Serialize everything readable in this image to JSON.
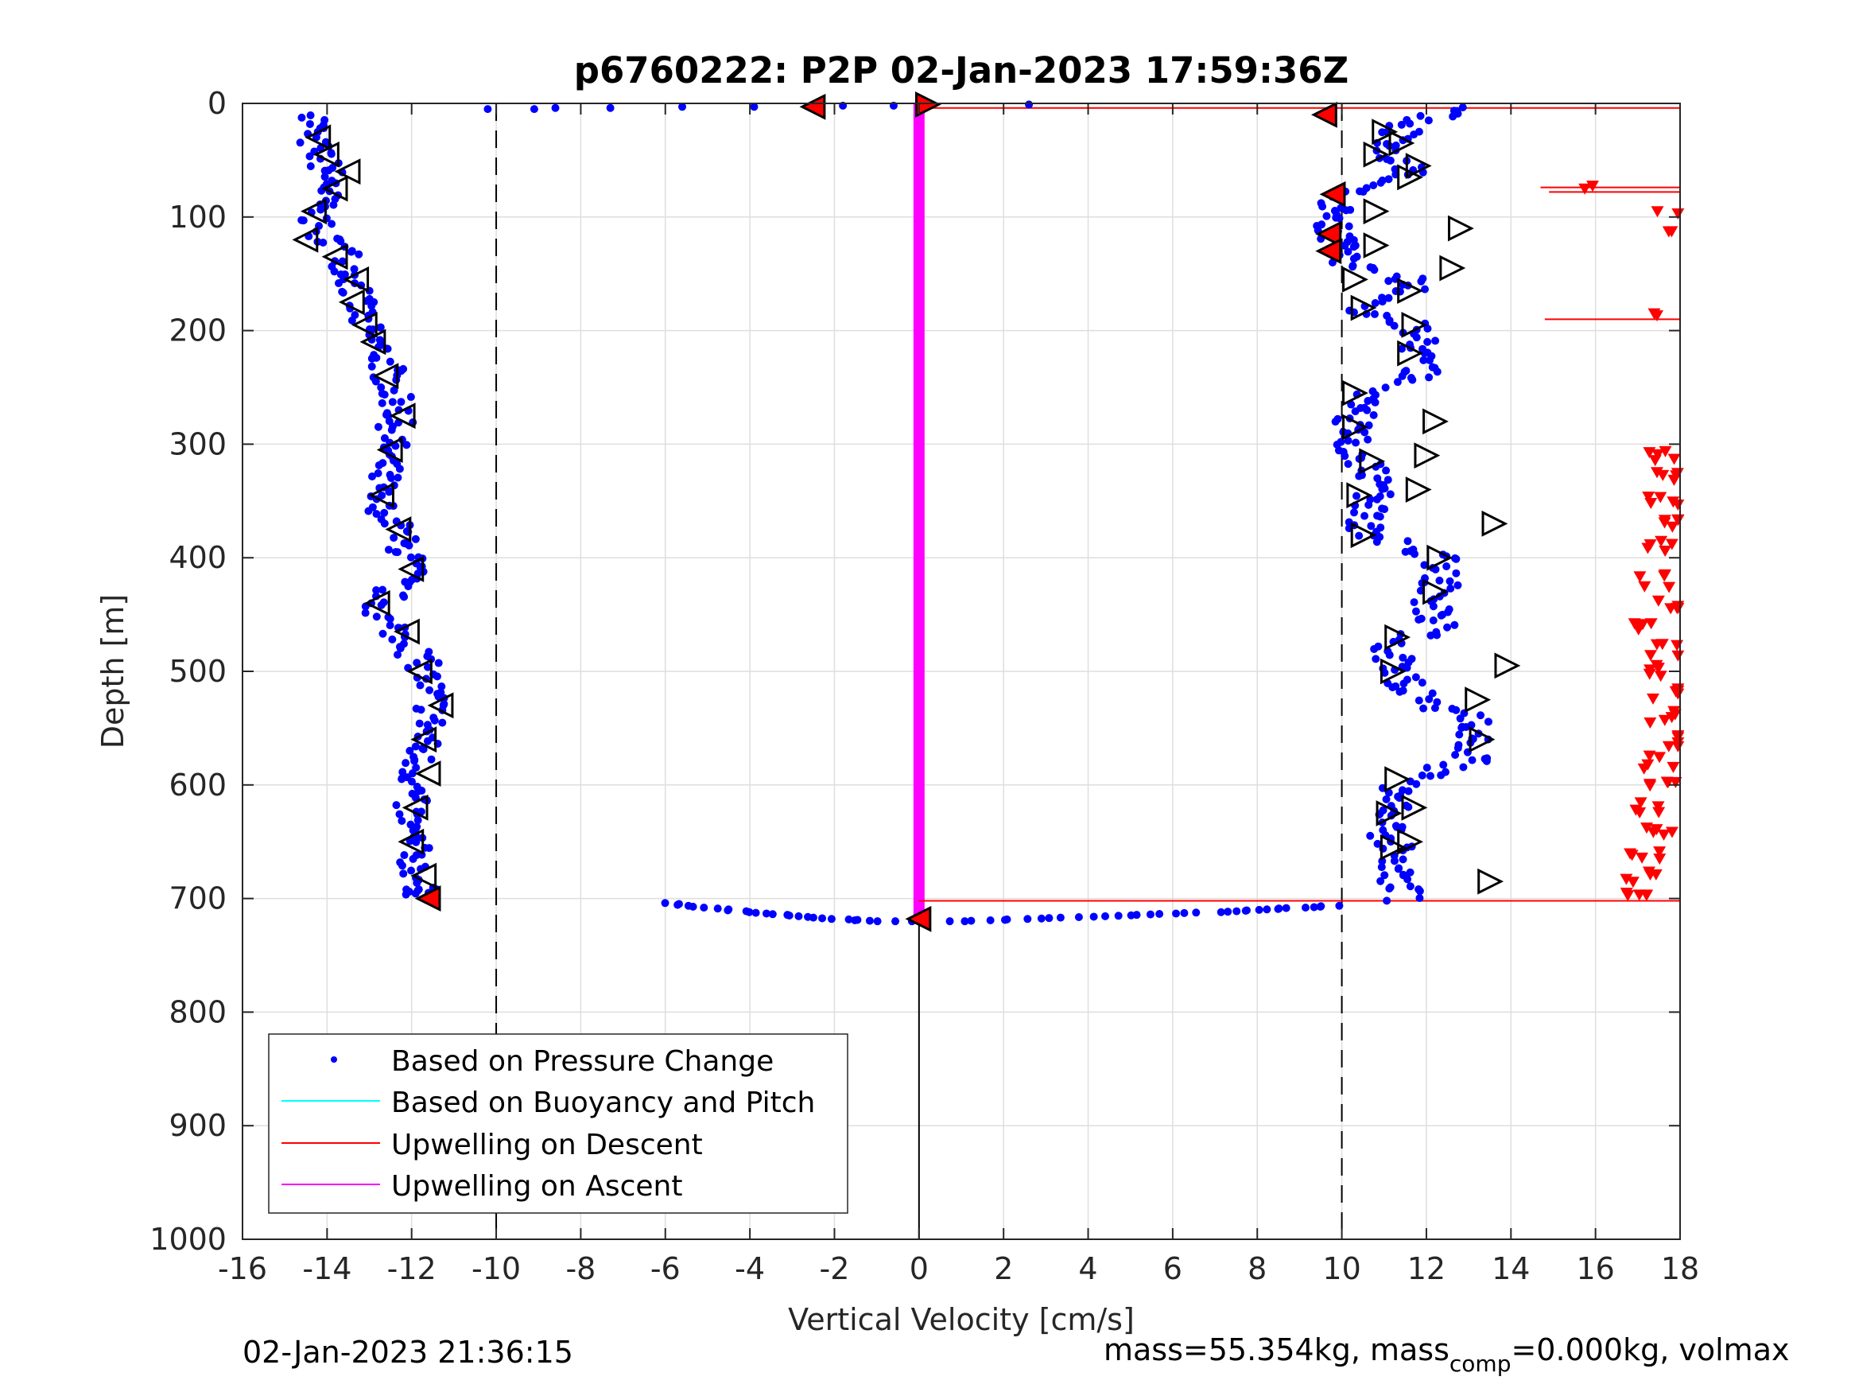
{
  "chart_data": {
    "type": "scatter",
    "title": "p6760222: P2P 02-Jan-2023 17:59:36Z",
    "xlabel": "Vertical Velocity [cm/s]",
    "ylabel": "Depth [m]",
    "xlim": [
      -16,
      18
    ],
    "ylim": [
      0,
      1000
    ],
    "y_reversed": true,
    "grid": true,
    "x_ticks": [
      "-16",
      "-14",
      "-12",
      "-10",
      "-8",
      "-6",
      "-4",
      "-2",
      "0",
      "2",
      "4",
      "6",
      "8",
      "10",
      "12",
      "14",
      "16",
      "18"
    ],
    "y_ticks": [
      "0",
      "100",
      "200",
      "300",
      "400",
      "500",
      "600",
      "700",
      "800",
      "900",
      "1000"
    ],
    "legend": {
      "placement": "bottom-left",
      "entries": [
        {
          "label": "Based on Pressure Change",
          "color": "#0000ff",
          "marker": "dot"
        },
        {
          "label": "Based on Buoyancy and Pitch",
          "color": "#00ffff",
          "marker": "line"
        },
        {
          "label": "Upwelling on Descent",
          "color": "#ff0000",
          "marker": "line"
        },
        {
          "label": "Upwelling on Ascent",
          "color": "#ff00ff",
          "marker": "line"
        }
      ]
    },
    "reference_lines": [
      {
        "x": -10,
        "style": "dashed"
      },
      {
        "x": 10,
        "style": "dashed"
      },
      {
        "x": 0,
        "style": "solid",
        "y_from": 720,
        "y_to": 1000
      }
    ],
    "series": [
      {
        "name": "Based on Pressure Change",
        "color": "#0000ff",
        "descent_profile": {
          "depth": [
            10,
            30,
            50,
            70,
            90,
            110,
            130,
            150,
            170,
            190,
            210,
            230,
            250,
            270,
            290,
            310,
            330,
            350,
            370,
            390,
            410,
            430,
            450,
            470,
            490,
            510,
            530,
            550,
            570,
            590,
            610,
            630,
            650,
            670,
            690,
            700
          ],
          "velocity": [
            -14.2,
            -14.4,
            -14.1,
            -13.9,
            -14.2,
            -14.3,
            -13.6,
            -13.4,
            -13.3,
            -13.2,
            -12.9,
            -12.6,
            -12.5,
            -12.3,
            -12.4,
            -12.6,
            -12.7,
            -12.9,
            -12.4,
            -12.2,
            -12.0,
            -12.5,
            -12.8,
            -12.2,
            -11.8,
            -11.6,
            -11.5,
            -11.6,
            -11.8,
            -11.9,
            -12.0,
            -12.1,
            -12.0,
            -11.9,
            -11.8,
            -11.7
          ]
        },
        "ascent_profile": {
          "depth": [
            700,
            680,
            660,
            640,
            620,
            600,
            580,
            560,
            540,
            520,
            500,
            480,
            460,
            440,
            420,
            400,
            380,
            360,
            340,
            320,
            300,
            280,
            260,
            240,
            220,
            200,
            180,
            160,
            140,
            120,
            100,
            80,
            60,
            40,
            20,
            5
          ],
          "velocity": [
            11.5,
            11.2,
            11.3,
            11.0,
            11.4,
            11.2,
            13.0,
            13.2,
            13.1,
            11.6,
            11.3,
            11.2,
            12.3,
            12.1,
            12.4,
            12.3,
            10.5,
            10.6,
            10.8,
            10.7,
            10.2,
            10.3,
            10.4,
            12.0,
            11.6,
            11.9,
            10.5,
            11.8,
            10.2,
            9.9,
            9.8,
            9.9,
            11.6,
            11.2,
            11.4,
            12.8
          ]
        },
        "surface_transition": {
          "depth": [
            5,
            5,
            4,
            4,
            3,
            3,
            3,
            2,
            2,
            1
          ],
          "velocity": [
            -10.2,
            -9.1,
            -8.6,
            -7.3,
            -5.6,
            -3.9,
            -2.6,
            -1.8,
            -0.6,
            2.6
          ]
        },
        "bottom_transition": {
          "depth": [
            704,
            708,
            712,
            715,
            718,
            720,
            720,
            718,
            716,
            714,
            712,
            710,
            708,
            706
          ],
          "velocity": [
            -6.0,
            -5.0,
            -4.0,
            -3.0,
            -2.0,
            -1.0,
            1.0,
            2.5,
            4.0,
            5.5,
            7.0,
            8.0,
            9.0,
            10.0
          ]
        }
      },
      {
        "name": "Upwelling on Descent",
        "color": "#ff0000",
        "horizontal_lines": [
          {
            "depth": 4,
            "x_from": 0,
            "x_to": 18
          },
          {
            "depth": 74,
            "x_from": 14.7,
            "x_to": 18
          },
          {
            "depth": 78,
            "x_from": 14.9,
            "x_to": 18
          },
          {
            "depth": 190,
            "x_from": 14.8,
            "x_to": 18
          },
          {
            "depth": 702,
            "x_from": 0,
            "x_to": 18
          }
        ],
        "scatter_depth": [
          75,
          100,
          110,
          190,
          310,
          330,
          350,
          370,
          390,
          420,
          440,
          460,
          480,
          500,
          520,
          540,
          560,
          580,
          600,
          620,
          640,
          660,
          680,
          695
        ],
        "scatter_velocity": [
          15.8,
          17.9,
          17.9,
          17.2,
          17.7,
          17.8,
          17.6,
          17.9,
          17.5,
          17.4,
          17.8,
          17.3,
          17.6,
          17.5,
          17.8,
          17.6,
          17.9,
          17.4,
          17.7,
          17.2,
          17.5,
          17.1,
          17.0,
          16.9
        ]
      },
      {
        "name": "Upwelling on Ascent",
        "color": "#ff00ff",
        "vertical_band": {
          "x": 0,
          "depth_from": 0,
          "depth_to": 720
        }
      }
    ],
    "markers": {
      "descent_triangles_left": [
        {
          "x": -14.2,
          "y": 30
        },
        {
          "x": -14.0,
          "y": 45
        },
        {
          "x": -13.5,
          "y": 60
        },
        {
          "x": -13.8,
          "y": 75
        },
        {
          "x": -14.3,
          "y": 95
        },
        {
          "x": -14.5,
          "y": 120
        },
        {
          "x": -13.8,
          "y": 135
        },
        {
          "x": -13.3,
          "y": 155
        },
        {
          "x": -13.4,
          "y": 175
        },
        {
          "x": -13.1,
          "y": 195
        },
        {
          "x": -12.9,
          "y": 210
        },
        {
          "x": -12.6,
          "y": 240
        },
        {
          "x": -12.2,
          "y": 275
        },
        {
          "x": -12.5,
          "y": 305
        },
        {
          "x": -12.7,
          "y": 345
        },
        {
          "x": -12.3,
          "y": 375
        },
        {
          "x": -12.0,
          "y": 410
        },
        {
          "x": -12.8,
          "y": 440
        },
        {
          "x": -12.1,
          "y": 465
        },
        {
          "x": -11.8,
          "y": 500
        },
        {
          "x": -11.3,
          "y": 530
        },
        {
          "x": -11.7,
          "y": 560
        },
        {
          "x": -11.6,
          "y": 590
        },
        {
          "x": -11.9,
          "y": 620
        },
        {
          "x": -12.0,
          "y": 650
        },
        {
          "x": -11.7,
          "y": 680
        }
      ],
      "ascent_triangles_right": [
        {
          "x": 10.8,
          "y": 45
        },
        {
          "x": 11.0,
          "y": 25
        },
        {
          "x": 11.4,
          "y": 35
        },
        {
          "x": 11.8,
          "y": 55
        },
        {
          "x": 11.6,
          "y": 65
        },
        {
          "x": 10.8,
          "y": 95
        },
        {
          "x": 12.8,
          "y": 110
        },
        {
          "x": 10.8,
          "y": 125
        },
        {
          "x": 12.6,
          "y": 145
        },
        {
          "x": 10.3,
          "y": 155
        },
        {
          "x": 11.6,
          "y": 165
        },
        {
          "x": 10.5,
          "y": 180
        },
        {
          "x": 11.7,
          "y": 195
        },
        {
          "x": 11.6,
          "y": 220
        },
        {
          "x": 10.3,
          "y": 255
        },
        {
          "x": 12.2,
          "y": 280
        },
        {
          "x": 10.3,
          "y": 285
        },
        {
          "x": 12.0,
          "y": 310
        },
        {
          "x": 10.7,
          "y": 315
        },
        {
          "x": 11.8,
          "y": 340
        },
        {
          "x": 10.4,
          "y": 345
        },
        {
          "x": 13.6,
          "y": 370
        },
        {
          "x": 10.5,
          "y": 380
        },
        {
          "x": 12.3,
          "y": 400
        },
        {
          "x": 12.2,
          "y": 430
        },
        {
          "x": 11.3,
          "y": 470
        },
        {
          "x": 11.2,
          "y": 500
        },
        {
          "x": 13.9,
          "y": 495
        },
        {
          "x": 13.2,
          "y": 525
        },
        {
          "x": 13.3,
          "y": 560
        },
        {
          "x": 11.3,
          "y": 595
        },
        {
          "x": 11.7,
          "y": 620
        },
        {
          "x": 11.1,
          "y": 625
        },
        {
          "x": 11.6,
          "y": 650
        },
        {
          "x": 11.2,
          "y": 655
        },
        {
          "x": 13.5,
          "y": 685
        }
      ],
      "red_triangles_left": [
        {
          "x": -2.5,
          "y": 3
        },
        {
          "x": 9.6,
          "y": 10
        },
        {
          "x": 9.8,
          "y": 80
        },
        {
          "x": 9.7,
          "y": 115
        },
        {
          "x": 9.7,
          "y": 130
        },
        {
          "x": -11.6,
          "y": 700
        },
        {
          "x": 0.0,
          "y": 718
        }
      ],
      "red_triangles_right": [
        {
          "x": 0.2,
          "y": 1
        }
      ]
    }
  },
  "footer": {
    "left_timestamp": "02-Jan-2023 21:36:15",
    "mass_prefix": "mass=55.354kg, mass",
    "mass_sub": "comp",
    "mass_suffix": "=0.000kg, volmax"
  }
}
